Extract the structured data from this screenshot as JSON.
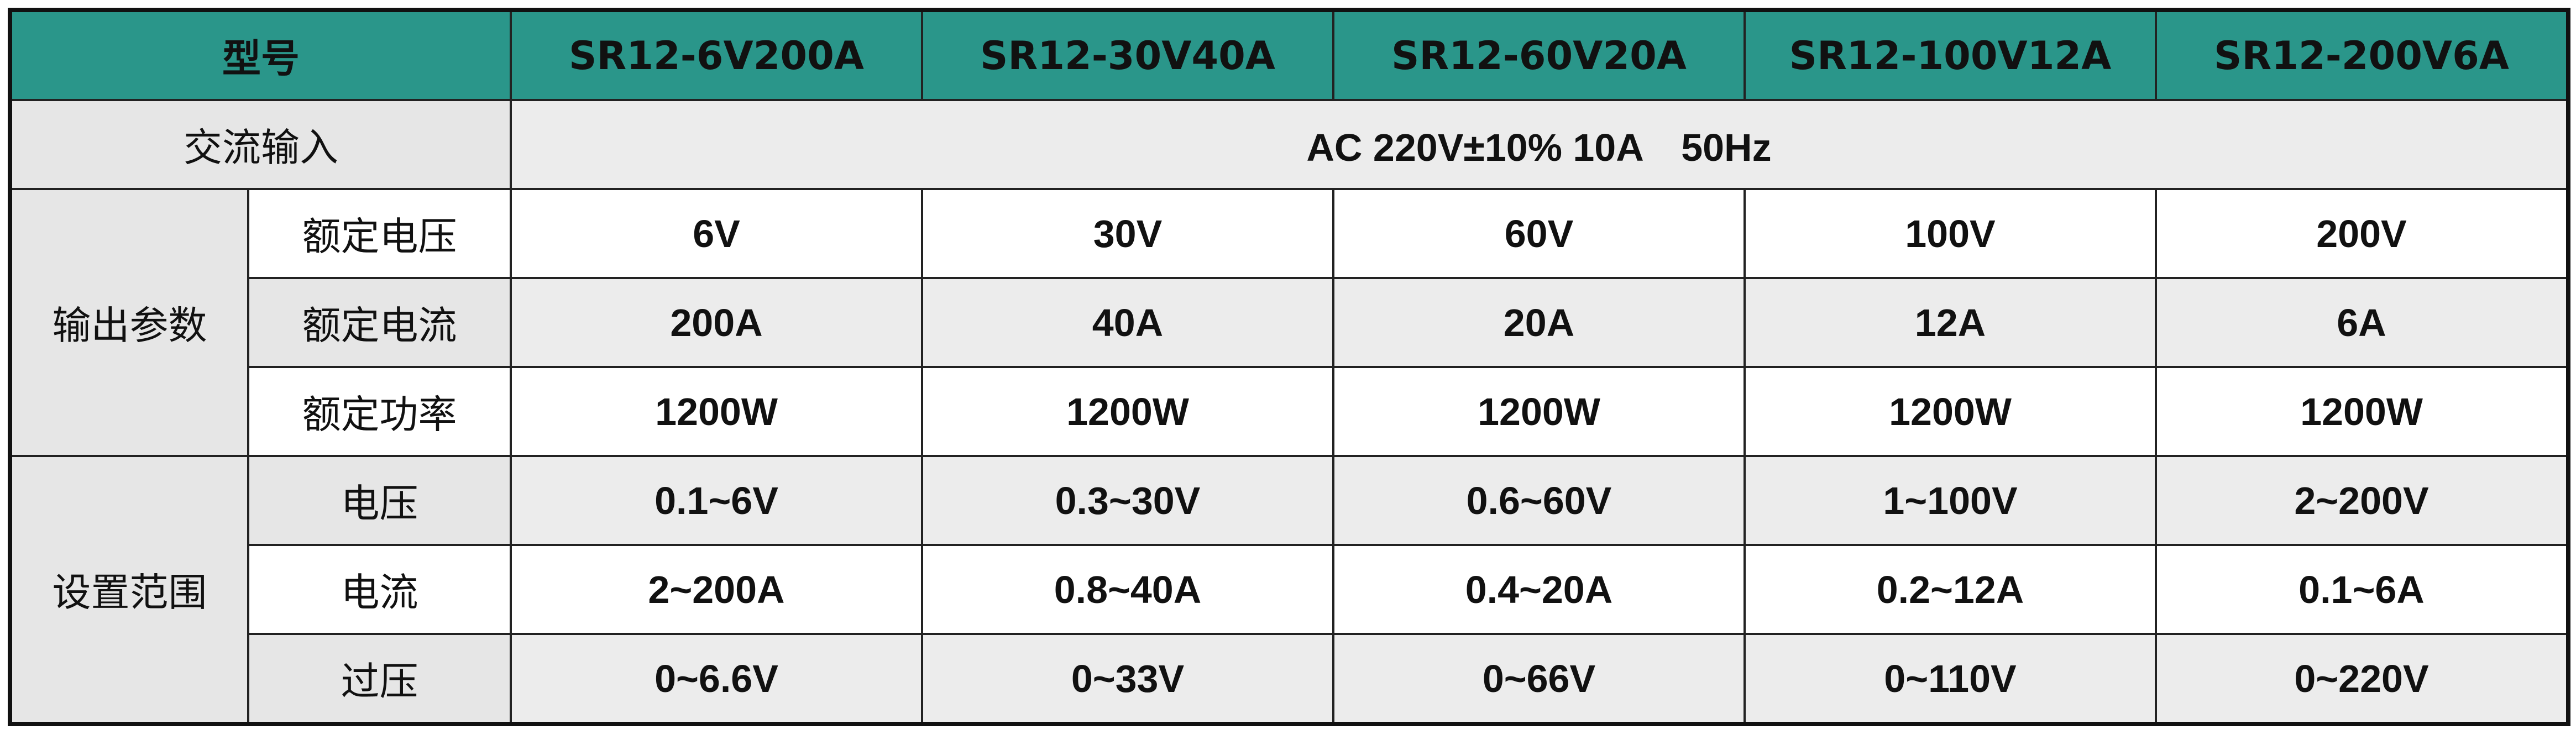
{
  "header": {
    "label": "型号",
    "models": [
      "SR12-6V200A",
      "SR12-30V40A",
      "SR12-60V20A",
      "SR12-100V12A",
      "SR12-200V6A"
    ]
  },
  "ac_input": {
    "label": "交流输入",
    "value": "AC 220V±10% 10A　50Hz"
  },
  "groups": [
    {
      "label": "输出参数",
      "rows": [
        {
          "label": "额定电压",
          "values": [
            "6V",
            "30V",
            "60V",
            "100V",
            "200V"
          ]
        },
        {
          "label": "额定电流",
          "values": [
            "200A",
            "40A",
            "20A",
            "12A",
            "6A"
          ]
        },
        {
          "label": "额定功率",
          "values": [
            "1200W",
            "1200W",
            "1200W",
            "1200W",
            "1200W"
          ]
        }
      ]
    },
    {
      "label": "设置范围",
      "rows": [
        {
          "label": "电压",
          "values": [
            "0.1~6V",
            "0.3~30V",
            "0.6~60V",
            "1~100V",
            "2~200V"
          ]
        },
        {
          "label": "电流",
          "values": [
            "2~200A",
            "0.8~40A",
            "0.4~20A",
            "0.2~12A",
            "0.1~6A"
          ]
        },
        {
          "label": "过压",
          "values": [
            "0~6.6V",
            "0~33V",
            "0~66V",
            "0~110V",
            "0~220V"
          ]
        }
      ]
    }
  ]
}
